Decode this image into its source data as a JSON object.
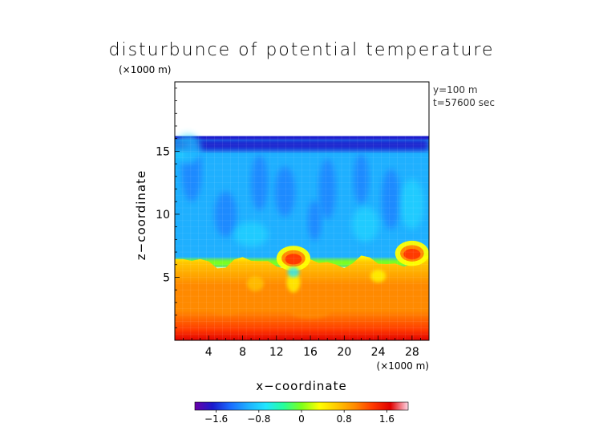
{
  "chart_data": {
    "type": "heatmap",
    "title": "disturbunce of potential temperature",
    "units_note": "(×1000 m)",
    "xlabel": "x−coordinate",
    "ylabel": "z−coordinate",
    "x_unit": "(×1000 m)",
    "annotation_y": "y=100 m",
    "annotation_t": "t=57600 sec",
    "x_range": [
      0,
      30
    ],
    "y_range": [
      0,
      20.5
    ],
    "x_ticks": [
      4,
      8,
      12,
      16,
      20,
      24,
      28
    ],
    "y_ticks": [
      5,
      10,
      15
    ],
    "data_top": 16.2,
    "colorbar": {
      "range": [
        -2.0,
        2.0
      ],
      "ticks": [
        -1.6,
        -0.8,
        0,
        0.8,
        1.6
      ],
      "tick_labels": [
        "−1.6",
        "−0.8",
        "0",
        "0.8",
        "1.6"
      ],
      "colormap": [
        "#6a00a8",
        "#1a1acc",
        "#1a6cff",
        "#1fb0ff",
        "#20e6ff",
        "#25ff9a",
        "#7dff1a",
        "#ffff00",
        "#ffc800",
        "#ff8a00",
        "#ff3a00",
        "#e00000",
        "#ffd6e6"
      ]
    },
    "structure": {
      "upper_layer_value": -1.0,
      "surface_value": 1.9,
      "inversion_height": 6.2,
      "warm_anomalies": [
        {
          "x": 14,
          "z": 6.5,
          "value": 1.8
        },
        {
          "x": 28,
          "z": 6.9,
          "value": 1.5
        }
      ]
    },
    "grid": false
  }
}
